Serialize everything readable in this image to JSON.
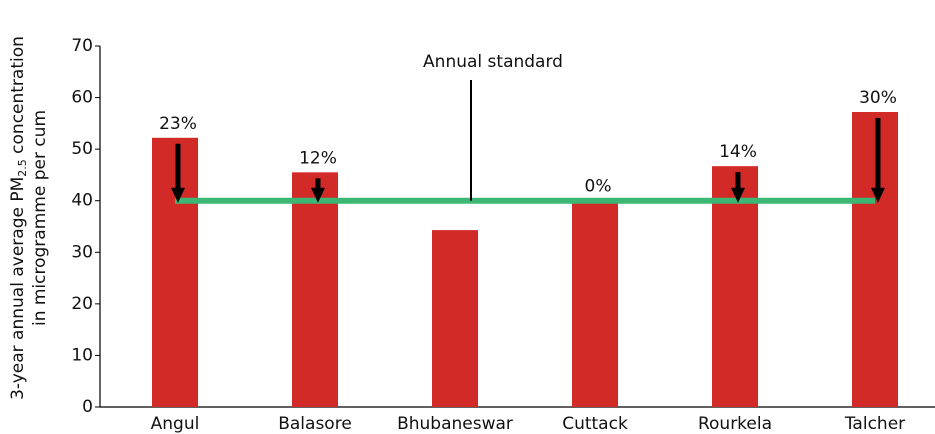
{
  "chart_data": {
    "type": "bar",
    "ylabel": {
      "line1": [
        "3-year annual average PM",
        "2.5",
        " concentration"
      ],
      "line2": "in microgramme per cum"
    },
    "categories": [
      "Angul",
      "Balasore",
      "Bhubaneswar",
      "Cuttack",
      "Rourkela",
      "Talcher"
    ],
    "values": [
      52.2,
      45.5,
      34.3,
      40,
      46.7,
      57.2
    ],
    "annotations": [
      "23%",
      "12%",
      null,
      "0%",
      "14%",
      "30%"
    ],
    "color": "#d22a27",
    "standard": {
      "value": 40,
      "label": "Annual standard",
      "color": "#3cb774"
    },
    "ylim": [
      0,
      70
    ],
    "yticks": [
      0,
      10,
      20,
      30,
      40,
      50,
      60,
      70
    ]
  }
}
